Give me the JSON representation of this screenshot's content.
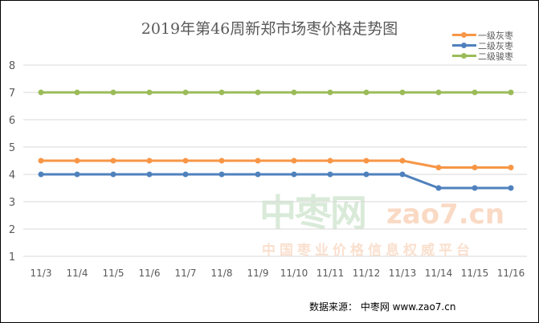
{
  "chart_data": {
    "type": "line",
    "title": "2019年第46周新郑市场枣价格走势图",
    "xlabel": "",
    "ylabel": "",
    "categories": [
      "11/3",
      "11/4",
      "11/5",
      "11/6",
      "11/7",
      "11/8",
      "11/9",
      "11/10",
      "11/11",
      "11/12",
      "11/13",
      "11/14",
      "11/15",
      "11/16"
    ],
    "ylim": [
      1,
      8
    ],
    "yticks": [
      "1",
      "2",
      "3",
      "4",
      "5",
      "6",
      "7",
      "8"
    ],
    "grid": true,
    "legend_position": "top-right",
    "series": [
      {
        "name": "一级灰枣",
        "color": "#F79646",
        "values": [
          4.5,
          4.5,
          4.5,
          4.5,
          4.5,
          4.5,
          4.5,
          4.5,
          4.5,
          4.5,
          4.5,
          4.25,
          4.25,
          4.25
        ]
      },
      {
        "name": "二级灰枣",
        "color": "#4F81BD",
        "values": [
          4,
          4,
          4,
          4,
          4,
          4,
          4,
          4,
          4,
          4,
          4,
          3.5,
          3.5,
          3.5
        ]
      },
      {
        "name": "二级骏枣",
        "color": "#9BBB59",
        "values": [
          7,
          7,
          7,
          7,
          7,
          7,
          7,
          7,
          7,
          7,
          7,
          7,
          7,
          7
        ]
      }
    ]
  },
  "watermark": {
    "brand": "中枣网",
    "domain": "zao7.cn",
    "slogan": "中国枣业价格信息权威平台"
  },
  "footer": "数据来源：  中枣网 www.zao7.cn"
}
